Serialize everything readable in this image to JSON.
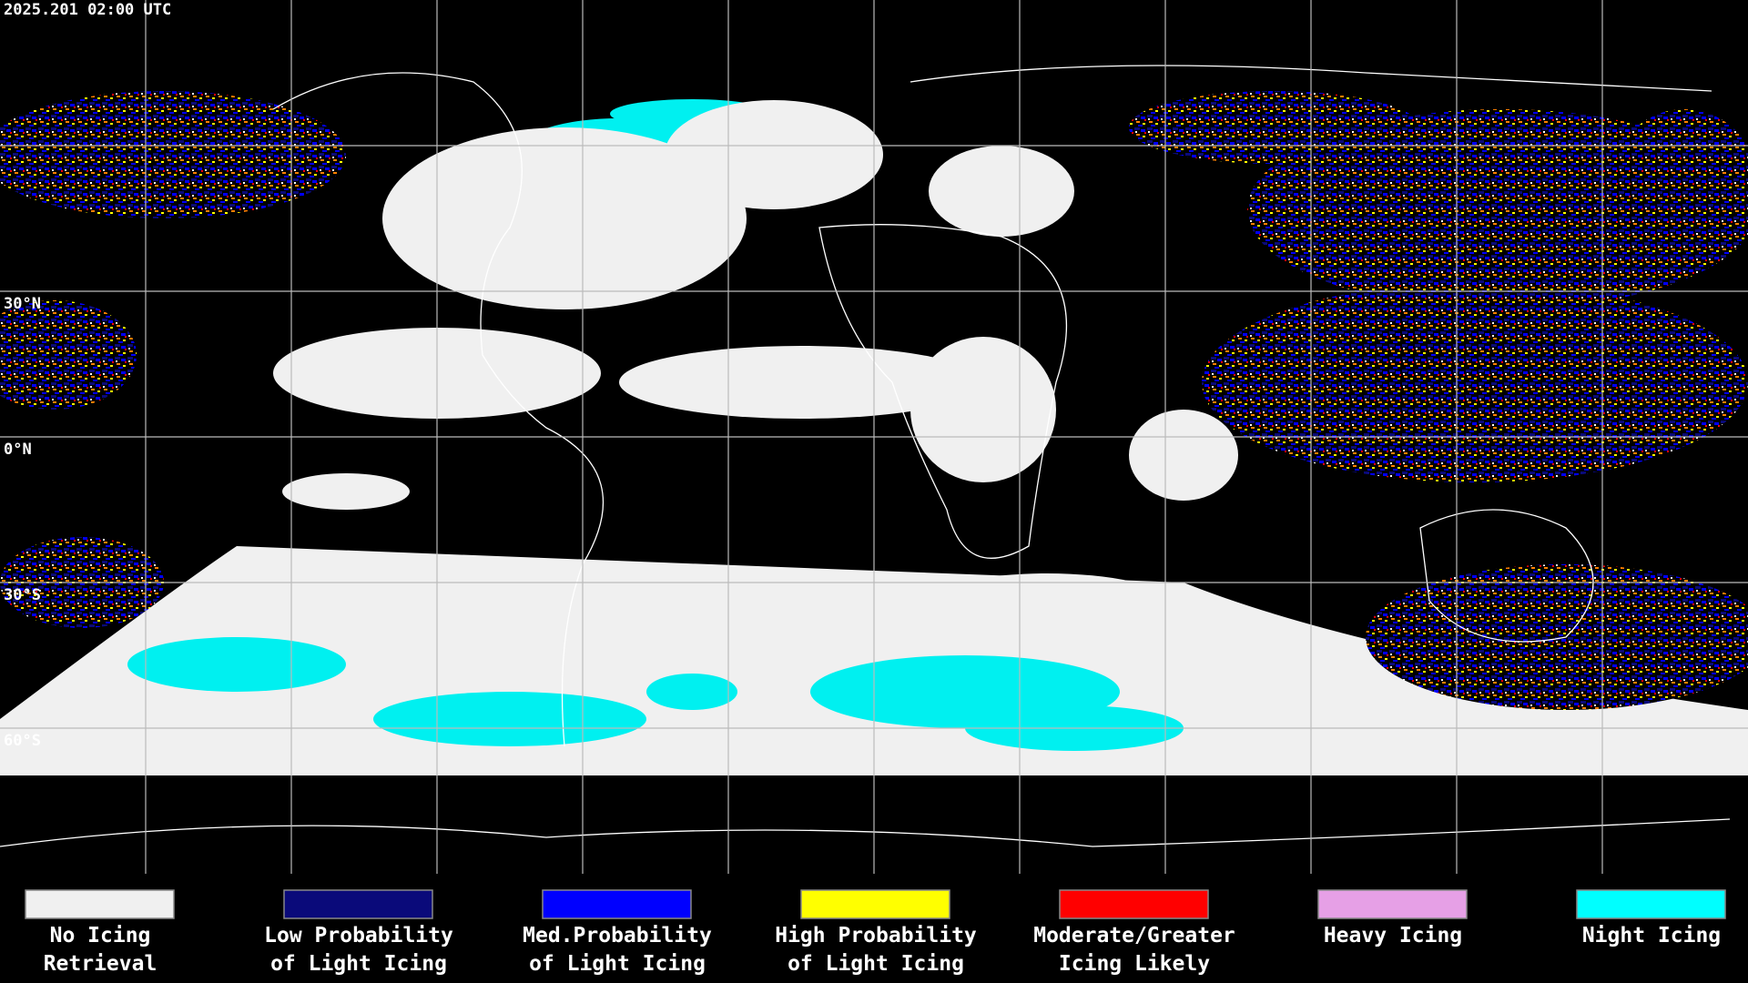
{
  "header": {
    "timestamp": "2025.201 02:00 UTC"
  },
  "latitude_labels": [
    "30°N",
    "0°N",
    "30°S",
    "60°S"
  ],
  "legend": [
    {
      "label_lines": [
        "No Icing",
        "Retrieval"
      ],
      "color": "#f0f0f0"
    },
    {
      "label_lines": [
        "Low Probability",
        "of Light Icing"
      ],
      "color": "#0a0a7a"
    },
    {
      "label_lines": [
        "Med.Probability",
        "of Light Icing"
      ],
      "color": "#0000ff"
    },
    {
      "label_lines": [
        "High Probability",
        "of Light Icing"
      ],
      "color": "#ffff00"
    },
    {
      "label_lines": [
        "Moderate/Greater",
        "Icing Likely"
      ],
      "color": "#ff0000"
    },
    {
      "label_lines": [
        "Heavy Icing"
      ],
      "color": "#e6a0e6"
    },
    {
      "label_lines": [
        "Night Icing"
      ],
      "color": "#00ffff"
    }
  ]
}
